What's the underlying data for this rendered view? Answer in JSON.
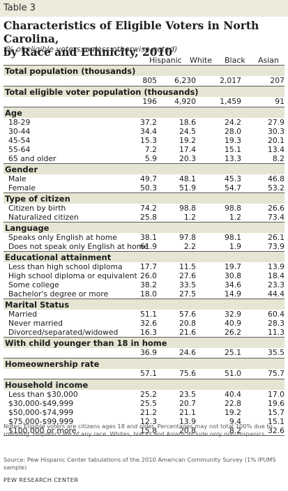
{
  "table_label": "Table 3",
  "title_line1": "Characteristics of Eligible Voters in North Carolina,",
  "title_line2": "by Race and Ethnicity, 2010",
  "subtitle": "(% of eligible voters, unless otherwise noted)",
  "columns": [
    "Hispanic",
    "White",
    "Black",
    "Asian"
  ],
  "sections": [
    {
      "heading": "Total population (thousands)",
      "rows": [
        {
          "label": "",
          "values": [
            "805",
            "6,230",
            "2,017",
            "207"
          ]
        }
      ]
    },
    {
      "heading": "Total eligible voter population (thousands)",
      "rows": [
        {
          "label": "",
          "values": [
            "196",
            "4,920",
            "1,459",
            "91"
          ]
        }
      ]
    },
    {
      "heading": "Age",
      "rows": [
        {
          "label": "18-29",
          "values": [
            "37.2",
            "18.6",
            "24.2",
            "27.9"
          ]
        },
        {
          "label": "30-44",
          "values": [
            "34.4",
            "24.5",
            "28.0",
            "30.3"
          ]
        },
        {
          "label": "45-54",
          "values": [
            "15.3",
            "19.2",
            "19.3",
            "20.1"
          ]
        },
        {
          "label": "55-64",
          "values": [
            "7.2",
            "17.4",
            "15.1",
            "13.4"
          ]
        },
        {
          "label": "65 and older",
          "values": [
            "5.9",
            "20.3",
            "13.3",
            "8.2"
          ]
        }
      ]
    },
    {
      "heading": "Gender",
      "rows": [
        {
          "label": "Male",
          "values": [
            "49.7",
            "48.1",
            "45.3",
            "46.8"
          ]
        },
        {
          "label": "Female",
          "values": [
            "50.3",
            "51.9",
            "54.7",
            "53.2"
          ]
        }
      ]
    },
    {
      "heading": "Type of citizen",
      "rows": [
        {
          "label": "Citizen by birth",
          "values": [
            "74.2",
            "98.8",
            "98.8",
            "26.6"
          ]
        },
        {
          "label": "Naturalized citizen",
          "values": [
            "25.8",
            "1.2",
            "1.2",
            "73.4"
          ]
        }
      ]
    },
    {
      "heading": "Language",
      "rows": [
        {
          "label": "Speaks only English at home",
          "values": [
            "38.1",
            "97.8",
            "98.1",
            "26.1"
          ]
        },
        {
          "label": "Does not speak only English at home",
          "values": [
            "61.9",
            "2.2",
            "1.9",
            "73.9"
          ]
        }
      ]
    },
    {
      "heading": "Educational attainment",
      "rows": [
        {
          "label": "Less than high school diploma",
          "values": [
            "17.7",
            "11.5",
            "19.7",
            "13.9"
          ]
        },
        {
          "label": "High school diploma or equivalent",
          "values": [
            "26.0",
            "27.6",
            "30.8",
            "18.4"
          ]
        },
        {
          "label": "Some college",
          "values": [
            "38.2",
            "33.5",
            "34.6",
            "23.3"
          ]
        },
        {
          "label": "Bachelor's degree or more",
          "values": [
            "18.0",
            "27.5",
            "14.9",
            "44.4"
          ]
        }
      ]
    },
    {
      "heading": "Marital Status",
      "rows": [
        {
          "label": "Married",
          "values": [
            "51.1",
            "57.6",
            "32.9",
            "60.4"
          ]
        },
        {
          "label": "Never married",
          "values": [
            "32.6",
            "20.8",
            "40.9",
            "28.3"
          ]
        },
        {
          "label": "Divorced/separated/widowed",
          "values": [
            "16.3",
            "21.6",
            "26.2",
            "11.3"
          ]
        }
      ]
    },
    {
      "heading": "With child younger than 18 in home",
      "rows": [
        {
          "label": "",
          "values": [
            "36.9",
            "24.6",
            "25.1",
            "35.5"
          ]
        }
      ]
    },
    {
      "heading": "Homeownership rate",
      "rows": [
        {
          "label": "",
          "values": [
            "57.1",
            "75.6",
            "51.0",
            "75.7"
          ]
        }
      ]
    },
    {
      "heading": "Household income",
      "rows": [
        {
          "label": "Less than $30,000",
          "values": [
            "25.2",
            "23.5",
            "40.4",
            "17.0"
          ]
        },
        {
          "label": "$30,000-$49,999",
          "values": [
            "25.5",
            "20.7",
            "22.8",
            "19.6"
          ]
        },
        {
          "label": "$50,000-$74,999",
          "values": [
            "21.2",
            "21.1",
            "19.2",
            "15.7"
          ]
        },
        {
          "label": "$75,000-$99,999",
          "values": [
            "12.3",
            "13.9",
            "9.4",
            "15.1"
          ]
        },
        {
          "label": "$100,000 or more",
          "values": [
            "15.8",
            "20.8",
            "8.2",
            "32.6"
          ]
        }
      ]
    }
  ],
  "notes": "Notes: Eligible voters are citizens ages 18 and older. Percentages may not total 100% due to rounding. Hispanics are of any race. Whites, blacks and Asians include only non-Hispanics.",
  "source": "Source: Pew Hispanic Center tabulations of the 2010 American Community Survey (1% IPUMS sample)",
  "footer": "PEW RESEARCH CENTER",
  "colors": {
    "header_band": "#ecebdc",
    "section_band": "#e6e5d3",
    "rule": "#5c5c5c"
  }
}
